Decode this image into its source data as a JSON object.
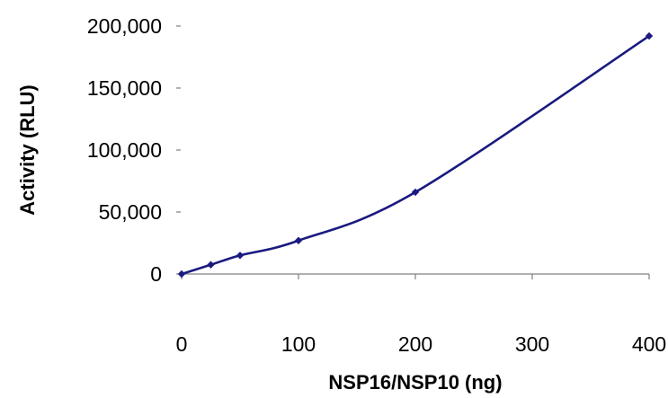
{
  "chart_data": {
    "type": "line",
    "xlabel": "NSP16/NSP10 (ng)",
    "ylabel": "Activity (RLU)",
    "xlim": [
      0,
      400
    ],
    "ylim": [
      0,
      200000
    ],
    "xticks": [
      0,
      100,
      200,
      300,
      400
    ],
    "yticks": [
      0,
      50000,
      100000,
      150000,
      200000
    ],
    "xtick_labels": [
      "0",
      "100",
      "200",
      "300",
      "400"
    ],
    "ytick_labels": [
      "0",
      "50,000",
      "100,000",
      "150,000",
      "200,000"
    ],
    "grid": false,
    "legend": "none",
    "series": [
      {
        "x": [
          0,
          25,
          50,
          100,
          200,
          400
        ],
        "y": [
          0,
          7500,
          15000,
          27000,
          66000,
          192000
        ],
        "color": "#1a1a80",
        "marker": "diamond",
        "smooth": true
      }
    ]
  }
}
